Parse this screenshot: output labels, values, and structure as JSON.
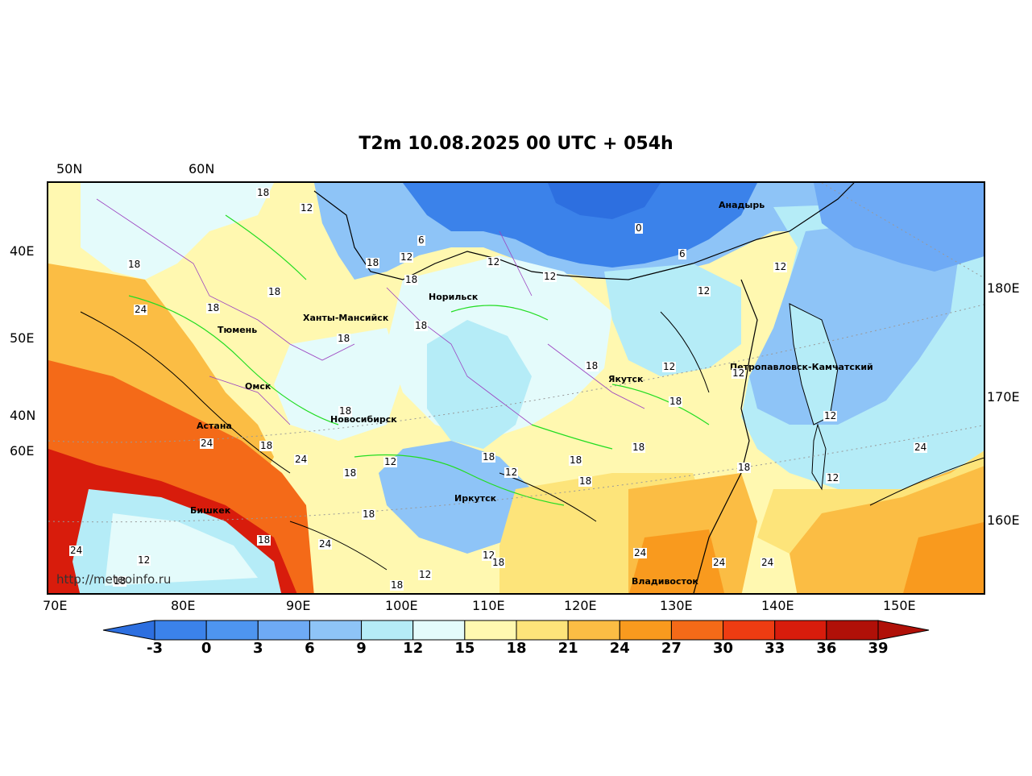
{
  "title": "T2m 10.08.2025 00 UTC + 054h",
  "top_lat_labels": [
    "50N",
    "60N"
  ],
  "left_labels": [
    "40E",
    "50E",
    "40N",
    "60E"
  ],
  "right_labels": [
    "180E",
    "170E",
    "160E"
  ],
  "bottom_lon_labels": [
    "70E",
    "80E",
    "90E",
    "100E",
    "110E",
    "120E",
    "130E",
    "140E",
    "150E"
  ],
  "cities": [
    {
      "name": "Анадырь"
    },
    {
      "name": "Норильск"
    },
    {
      "name": "Ханты-Мансийск"
    },
    {
      "name": "Тюмень"
    },
    {
      "name": "Якутск"
    },
    {
      "name": "Петропавловск-Камчатский"
    },
    {
      "name": "Омск"
    },
    {
      "name": "Астана"
    },
    {
      "name": "Новосибирск"
    },
    {
      "name": "Иркутск"
    },
    {
      "name": "Бишкек"
    },
    {
      "name": "Владивосток"
    }
  ],
  "contour_labels": [
    "18",
    "12",
    "6",
    "12",
    "18",
    "18",
    "12",
    "0",
    "6",
    "12",
    "18",
    "24",
    "18",
    "18",
    "18",
    "18",
    "12",
    "18",
    "12",
    "12",
    "12",
    "18",
    "18",
    "24",
    "18",
    "24",
    "18",
    "12",
    "18",
    "18",
    "18",
    "12",
    "18",
    "18",
    "12",
    "24",
    "18",
    "18",
    "12",
    "24",
    "24",
    "24",
    "24",
    "12",
    "18",
    "12",
    "18",
    "24",
    "12",
    "18"
  ],
  "watermark": "http://meteoinfo.ru",
  "colorbar": {
    "ticks": [
      "-3",
      "0",
      "3",
      "6",
      "9",
      "12",
      "15",
      "18",
      "21",
      "24",
      "27",
      "30",
      "33",
      "36",
      "39"
    ],
    "colors": [
      "#2d6fe0",
      "#3b82ea",
      "#4e95f0",
      "#6eaaf5",
      "#8ec4f7",
      "#b5ecf7",
      "#e4fbfb",
      "#fff8b0",
      "#fde47a",
      "#fbbd44",
      "#f99a1e",
      "#f46a18",
      "#ee3c12",
      "#d81c0c",
      "#b01008"
    ]
  }
}
